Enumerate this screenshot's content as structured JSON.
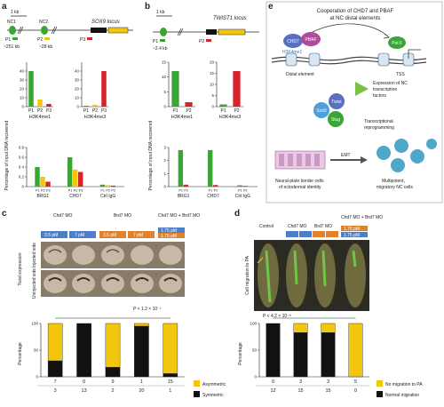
{
  "panels": {
    "a": {
      "letter": "a",
      "scale_label": "1 kb",
      "locus_label": "SOX9 locus",
      "element_labels": [
        "NC1",
        "NC2"
      ],
      "primer_labels": [
        "P1",
        "P2",
        "P3"
      ],
      "distance_labels": [
        "~251 kb",
        "~28 kb"
      ]
    },
    "b": {
      "letter": "b",
      "scale_label": "1 kb",
      "locus_label": "TWIST1 locus",
      "primer_labels": [
        "P1",
        "P2"
      ],
      "distance_labels": [
        "~2.4 kb"
      ]
    },
    "c": {
      "letter": "c",
      "group_labels": [
        "Chd7 MO",
        "Brd7 MO",
        "Chd7 MO + Brd7 MO"
      ],
      "dose_labels": [
        "3.5 pM",
        "7 pM",
        "3.5 pM",
        "7 pM",
        "1.75 pM",
        "1.75 pM"
      ],
      "row_labels": [
        "Injected side",
        "Uninjected side"
      ],
      "row_axis_label": "Twist expression",
      "pvalue_label": "P < 1.2 × 10⁻⁷",
      "counts_top": [
        "7",
        "0",
        "9",
        "1",
        "15"
      ],
      "counts_bottom": [
        "3",
        "13",
        "2",
        "20",
        "1"
      ],
      "legend": [
        "Asymmetric",
        "Symmetric"
      ]
    },
    "d": {
      "letter": "d",
      "group_labels": [
        "Control",
        "Chd7 MO",
        "Brd7 MO",
        "Chd7 MO + Brd7 MO"
      ],
      "dose_labels": [
        "3.5 pM",
        "7 pM",
        "3.5 pM",
        "7 pM",
        "1.75 pM",
        "1.75 pM"
      ],
      "row_axis_label": "Cell migration to PA",
      "pvalue_label": "P < 4.2 × 10⁻⁵",
      "counts_top": [
        "0",
        "3",
        "3",
        "5"
      ],
      "counts_bottom": [
        "12",
        "15",
        "15",
        "0"
      ],
      "legend": [
        "No migration to PA",
        "Normal migration"
      ]
    },
    "e": {
      "letter": "e",
      "title_lines": [
        "Cooperation of CHD7 and PBAF",
        "at NC distal elements"
      ],
      "node_labels": [
        "CHD7",
        "PBAF",
        "H3K4me1",
        "Pol II"
      ],
      "region_labels": [
        "Distal element",
        "TSS"
      ],
      "expression_lines": [
        "Expression of NC",
        "transcription",
        "factors"
      ],
      "tf_labels": [
        "Sox9",
        "Twist",
        "Slug"
      ],
      "reprogramming_lines": [
        "Transcriptional",
        "reprogramming"
      ],
      "emt_label": "EMT",
      "left_cell_lines": [
        "Neural-plate border cells",
        "of ectodermal identity"
      ],
      "right_cell_lines": [
        "Multipotent,",
        "migratory NC cells"
      ]
    }
  },
  "chart_data": [
    {
      "type": "bar",
      "panel": "a",
      "title": "H3K4me1",
      "ylabel": "Percentage of input DNA recovered",
      "categories": [
        "P1",
        "P2",
        "P3"
      ],
      "values": [
        40,
        8,
        3
      ],
      "ylim": [
        0,
        50
      ],
      "ticks": [
        0,
        10,
        20,
        30,
        40
      ]
    },
    {
      "type": "bar",
      "panel": "a",
      "title": "H3K4me3",
      "categories": [
        "P1",
        "P2",
        "P3"
      ],
      "values": [
        1,
        2,
        40
      ],
      "ylim": [
        0,
        50
      ],
      "ticks": [
        0,
        10,
        20,
        30,
        40
      ]
    },
    {
      "type": "bar",
      "panel": "a",
      "ylabel": "Percentage of input DNA recovered",
      "categories": [
        "BRG1",
        "CHD7",
        "Ctrl IgG"
      ],
      "series": [
        {
          "name": "P1",
          "values": [
            0.4,
            0.6,
            0.04
          ]
        },
        {
          "name": "P2",
          "values": [
            0.2,
            0.35,
            0.03
          ]
        },
        {
          "name": "P3",
          "values": [
            0.1,
            0.3,
            0.02
          ]
        }
      ],
      "ylim": [
        0,
        0.8
      ],
      "ticks": [
        0,
        0.2,
        0.4,
        0.6,
        0.8
      ]
    },
    {
      "type": "bar",
      "panel": "b",
      "title": "H3K4me1",
      "ylabel": "Percentage of input DNA recovered",
      "categories": [
        "P1",
        "P2"
      ],
      "values": [
        12,
        1.5
      ],
      "ylim": [
        0,
        15
      ],
      "ticks": [
        0,
        5,
        10,
        15
      ]
    },
    {
      "type": "bar",
      "panel": "b",
      "title": "H3K4me3",
      "categories": [
        "P1",
        "P2"
      ],
      "values": [
        1,
        16
      ],
      "ylim": [
        0,
        20
      ],
      "ticks": [
        0,
        5,
        10,
        15,
        20
      ]
    },
    {
      "type": "bar",
      "panel": "b",
      "ylabel": "Percentage of input DNA recovered",
      "categories": [
        "BRG1",
        "CHD7",
        "Ctrl IgG"
      ],
      "series": [
        {
          "name": "P1",
          "values": [
            2.8,
            2.8,
            0.1
          ]
        },
        {
          "name": "P2",
          "values": [
            0.15,
            0.12,
            0.05
          ]
        }
      ],
      "ylim": [
        0,
        3
      ],
      "ticks": [
        0,
        1,
        2,
        3
      ]
    },
    {
      "type": "bar",
      "panel": "c",
      "ylabel": "Percentage",
      "stacked": true,
      "categories": [
        "Chd7 MO 3.5 pM",
        "Chd7 MO 7 pM",
        "Brd7 MO 3.5 pM",
        "Brd7 MO 7 pM",
        "Chd7 MO + Brd7 MO"
      ],
      "series": [
        {
          "name": "Symmetric",
          "values": [
            30,
            100,
            18,
            95,
            6
          ]
        },
        {
          "name": "Asymmetric",
          "values": [
            70,
            0,
            82,
            5,
            94
          ]
        }
      ],
      "ylim": [
        0,
        100
      ],
      "ticks": [
        0,
        50,
        100
      ]
    },
    {
      "type": "bar",
      "panel": "d",
      "ylabel": "Percentage",
      "stacked": true,
      "categories": [
        "Control",
        "Chd7 MO",
        "Brd7 MO",
        "Chd7 MO + Brd7 MO"
      ],
      "series": [
        {
          "name": "Normal migration",
          "values": [
            100,
            83,
            83,
            0
          ]
        },
        {
          "name": "No migration to PA",
          "values": [
            0,
            17,
            17,
            100
          ]
        }
      ],
      "ylim": [
        0,
        100
      ],
      "ticks": [
        0,
        50,
        100
      ]
    }
  ],
  "colors": {
    "green": "#3aa535",
    "yellow": "#f2c60f",
    "red": "#d9232b",
    "black": "#111111",
    "chd7": "#5a6fbf",
    "pbaf": "#b24a9c",
    "me1": "#2f7fc2",
    "pol2": "#3aa535",
    "orange": "#e0822c",
    "blue": "#4c7fc8"
  }
}
